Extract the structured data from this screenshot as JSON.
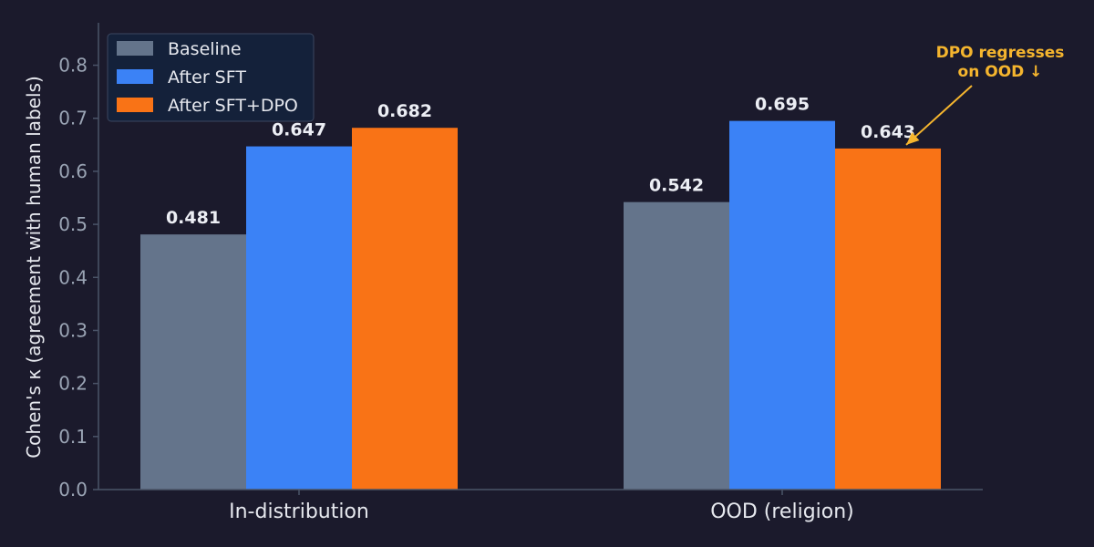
{
  "chart_data": {
    "type": "bar",
    "categories": [
      "In-distribution",
      "OOD (religion)"
    ],
    "series": [
      {
        "name": "Baseline",
        "values": [
          0.481,
          0.542
        ],
        "color": "#64748b"
      },
      {
        "name": "After SFT",
        "values": [
          0.647,
          0.695
        ],
        "color": "#3b82f6"
      },
      {
        "name": "After SFT+DPO",
        "values": [
          0.682,
          0.643
        ],
        "color": "#f97316"
      }
    ],
    "data_labels": [
      [
        "0.481",
        "0.647",
        "0.682"
      ],
      [
        "0.542",
        "0.695",
        "0.643"
      ]
    ],
    "ylabel": "Cohen's κ (agreement with human labels)",
    "ylim": [
      0,
      0.88
    ],
    "yticks": [
      "0.0",
      "0.1",
      "0.2",
      "0.3",
      "0.4",
      "0.5",
      "0.6",
      "0.7",
      "0.8"
    ],
    "ytick_values": [
      0,
      0.1,
      0.2,
      0.3,
      0.4,
      0.5,
      0.6,
      0.7,
      0.8
    ],
    "legend_placement": "top-left",
    "grid": false,
    "annotation": {
      "lines": [
        "DPO regresses",
        "on OOD ↓"
      ],
      "color": "#f5b52e",
      "target_category": 1,
      "target_series": 2
    }
  },
  "colors": {
    "background": "#1b1a2c",
    "axis": "#4b5468"
  }
}
